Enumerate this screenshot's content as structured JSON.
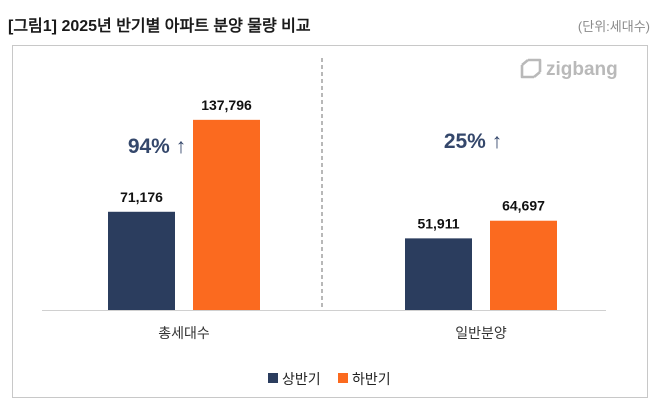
{
  "logo": {
    "text": "zigbang",
    "icon": "zigbang-logo-icon"
  },
  "colors": {
    "annotation": "#34476b",
    "frame": "#c8c8c8",
    "divider": "#9a9a9a"
  },
  "chart_data": {
    "type": "bar",
    "title": "[그림1] 2025년 반기별 아파트 분양 물량 비교",
    "unit": "(단위:세대수)",
    "categories": [
      "총세대수",
      "일반분양"
    ],
    "series": [
      {
        "name": "상반기",
        "values": [
          71176,
          51911
        ],
        "labels": [
          "71,176",
          "51,911"
        ],
        "color": "#2b3d5e"
      },
      {
        "name": "하반기",
        "values": [
          137796,
          64697
        ],
        "labels": [
          "137,796",
          "64,697"
        ],
        "color": "#fb6a1f"
      }
    ],
    "annotations": [
      {
        "category": "총세대수",
        "text": "94% ↑"
      },
      {
        "category": "일반분양",
        "text": "25% ↑"
      }
    ],
    "ylim": [
      0,
      150000
    ],
    "grid": false,
    "legend": "bottom"
  }
}
